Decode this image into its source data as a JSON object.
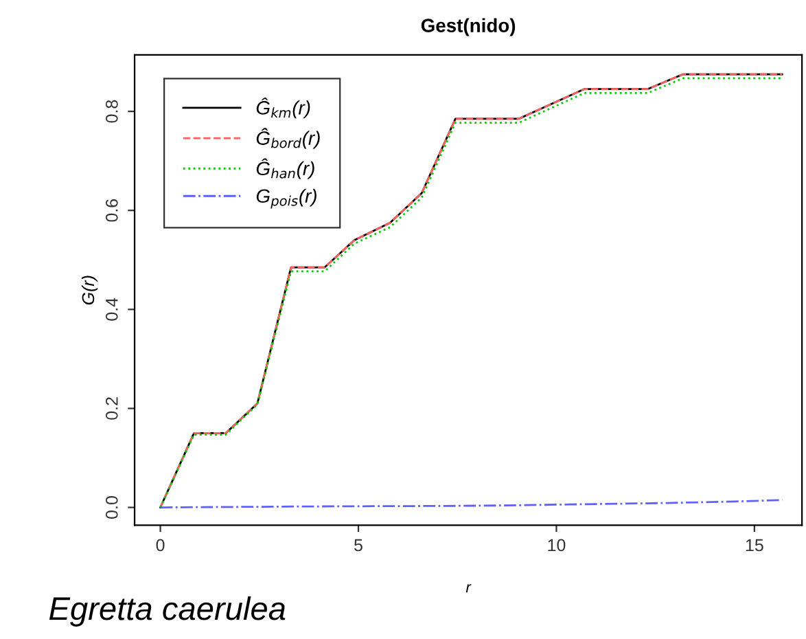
{
  "chart_data": {
    "type": "line",
    "title": "Gest(nido)",
    "xlabel": "r",
    "ylabel": "G(r)",
    "xlim": [
      -0.65,
      16.2
    ],
    "ylim": [
      -0.036,
      0.914
    ],
    "xticks": [
      0,
      5,
      10,
      15
    ],
    "yticks": [
      {
        "value": 0,
        "label": "0.0"
      },
      {
        "value": 0.2,
        "label": "0.2"
      },
      {
        "value": 0.4,
        "label": "0.4"
      },
      {
        "value": 0.6,
        "label": "0.6"
      },
      {
        "value": 0.8,
        "label": "0.8"
      }
    ],
    "grid": false,
    "legend": "top left",
    "annotations": [
      "Egretta caerulea"
    ],
    "series": [
      {
        "name": "Ĝ$_{km}$(r)",
        "color": "#000000",
        "line_style": "solid",
        "x": [
          0,
          0.85,
          1.65,
          2.45,
          3.3,
          4.15,
          4.9,
          5.8,
          6.6,
          7.45,
          9.05,
          10.7,
          12.3,
          13.2,
          15.7
        ],
        "values": [
          0,
          0.15,
          0.15,
          0.21,
          0.485,
          0.485,
          0.54,
          0.575,
          0.635,
          0.785,
          0.785,
          0.845,
          0.845,
          0.875,
          0.875
        ]
      },
      {
        "name": "Ĝ$_{bord}$(r)",
        "color": "#ff6060",
        "line_style": "dashed",
        "x": [
          0,
          0.85,
          1.65,
          2.45,
          3.3,
          4.15,
          4.9,
          5.8,
          6.6,
          7.45,
          9.05,
          10.7,
          12.3,
          13.2,
          15.7
        ],
        "values": [
          0,
          0.15,
          0.15,
          0.21,
          0.485,
          0.485,
          0.54,
          0.575,
          0.635,
          0.785,
          0.785,
          0.845,
          0.845,
          0.875,
          0.875
        ]
      },
      {
        "name": "Ĝ$_{han}$(r)",
        "color": "#00cc00",
        "line_style": "dotted",
        "x": [
          0,
          0.85,
          1.65,
          2.45,
          3.3,
          4.15,
          4.9,
          5.8,
          6.6,
          7.45,
          9.05,
          10.7,
          12.3,
          13.2,
          15.7
        ],
        "values": [
          0,
          0.147,
          0.147,
          0.208,
          0.477,
          0.477,
          0.533,
          0.566,
          0.626,
          0.777,
          0.777,
          0.837,
          0.837,
          0.867,
          0.867
        ]
      },
      {
        "name": "G$_{pois}$(r)",
        "color": "#6060ff",
        "line_style": "dashdot",
        "x": [
          0,
          3.7,
          7.2,
          8.7,
          10.3,
          12.8,
          14.5,
          15.7
        ],
        "values": [
          0,
          0.002,
          0.003,
          0.004,
          0.006,
          0.009,
          0.012,
          0.015
        ]
      }
    ]
  }
}
